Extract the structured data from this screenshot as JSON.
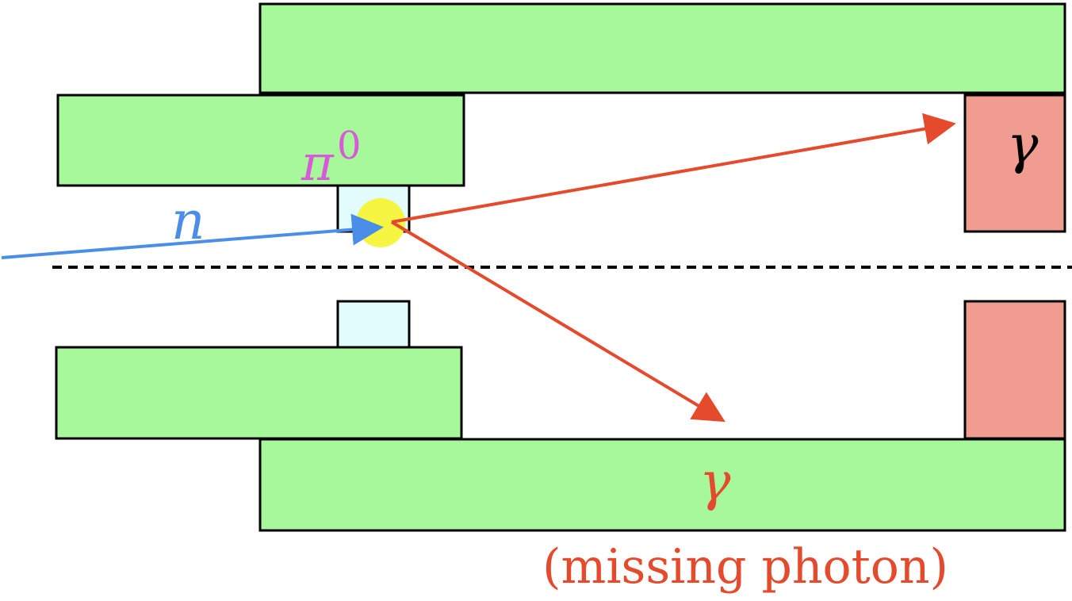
{
  "colors": {
    "detector": "#a6f89a",
    "target": "#e2fcfc",
    "calorimeter": "#f09c91",
    "neutron": "#4a8ee8",
    "pion": "#d85ad8",
    "photon": "#e54a2d",
    "vertex": "#f5f542"
  },
  "labels": {
    "neutron": "n",
    "pion": "π",
    "pion_superscript": "0",
    "photon_detected": "γ",
    "photon_missing": "γ",
    "missing_caption": "(missing photon)"
  }
}
